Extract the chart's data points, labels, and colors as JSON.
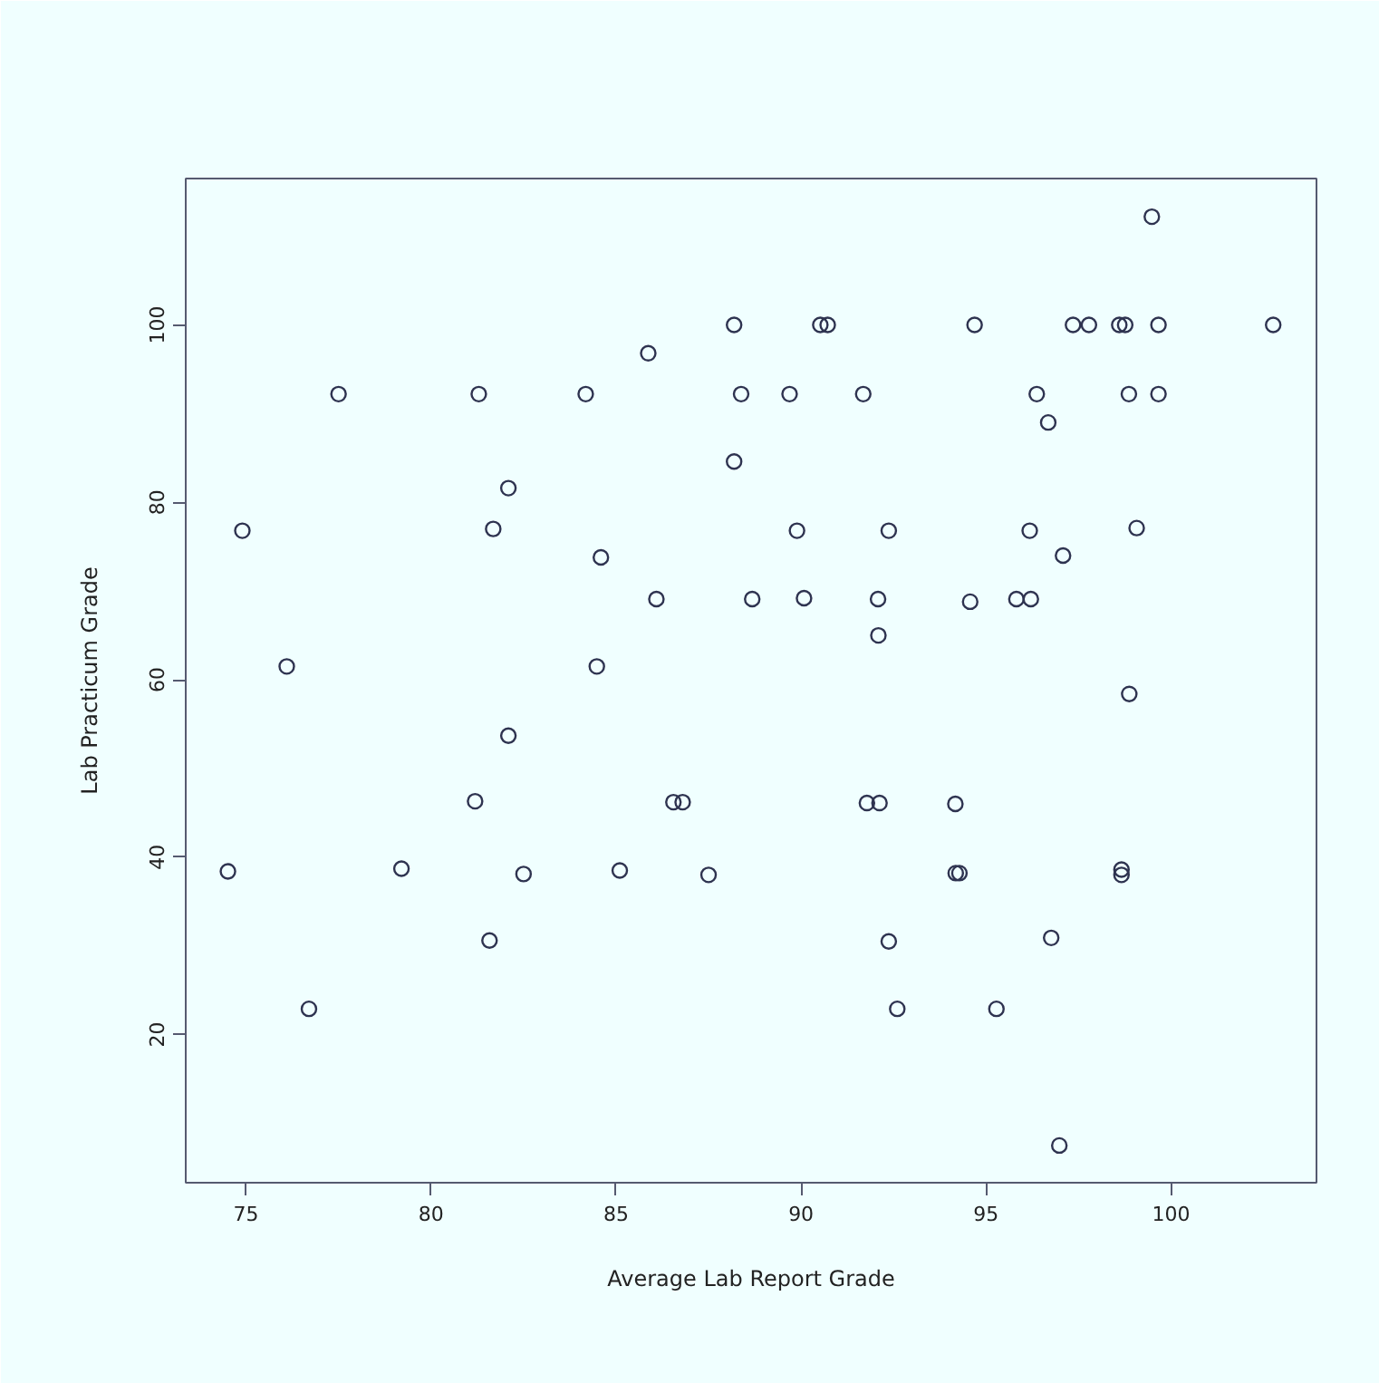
{
  "chart_data": {
    "type": "scatter",
    "xlabel": "Average Lab Report Grade",
    "ylabel": "Lab Practicum Grade",
    "x": [
      88.19,
      85.87,
      77.5,
      81.29,
      84.18,
      88.38,
      88.19,
      82.09,
      74.9,
      81.68,
      84.59,
      86.09,
      88.68,
      76.1,
      84.48,
      99.48,
      90.52,
      90.72,
      94.69,
      97.35,
      97.78,
      98.6,
      98.76,
      99.66,
      102.76,
      89.69,
      91.68,
      96.37,
      98.86,
      99.66,
      96.68,
      89.89,
      92.37,
      96.18,
      99.07,
      97.08,
      90.08,
      92.08,
      94.57,
      95.82,
      96.21,
      92.09,
      98.87,
      82.09,
      81.19,
      86.55,
      86.8,
      74.51,
      79.2,
      82.5,
      85.1,
      87.5,
      81.58,
      76.7,
      91.78,
      92.12,
      94.17,
      94.18,
      94.28,
      98.66,
      98.66,
      92.37,
      96.76,
      92.6,
      95.28,
      96.98
    ],
    "values": [
      100,
      96.8,
      92.2,
      92.2,
      92.2,
      92.2,
      84.6,
      81.6,
      76.8,
      77.0,
      73.8,
      69.1,
      69.1,
      61.5,
      61.5,
      112.2,
      100,
      100,
      100,
      100,
      100,
      100,
      100,
      100,
      100,
      92.2,
      92.2,
      92.2,
      92.2,
      92.2,
      89.0,
      76.8,
      76.8,
      76.8,
      77.1,
      74.0,
      69.2,
      69.1,
      68.8,
      69.1,
      69.1,
      65.0,
      58.4,
      53.7,
      46.3,
      46.2,
      46.2,
      38.4,
      38.7,
      38.1,
      38.5,
      38.0,
      30.6,
      22.9,
      46.1,
      46.1,
      46.0,
      38.2,
      38.2,
      38.6,
      38.0,
      30.5,
      30.9,
      22.9,
      22.9,
      7.5
    ],
    "color": "#2e3350",
    "marker": "circle",
    "grid": false,
    "xlim": [
      73.37,
      103.93
    ],
    "ylim": [
      3.3,
      116.5
    ],
    "xticks": [
      75,
      80,
      85,
      90,
      95,
      100
    ],
    "yticks": [
      20,
      40,
      60,
      80,
      100
    ]
  }
}
